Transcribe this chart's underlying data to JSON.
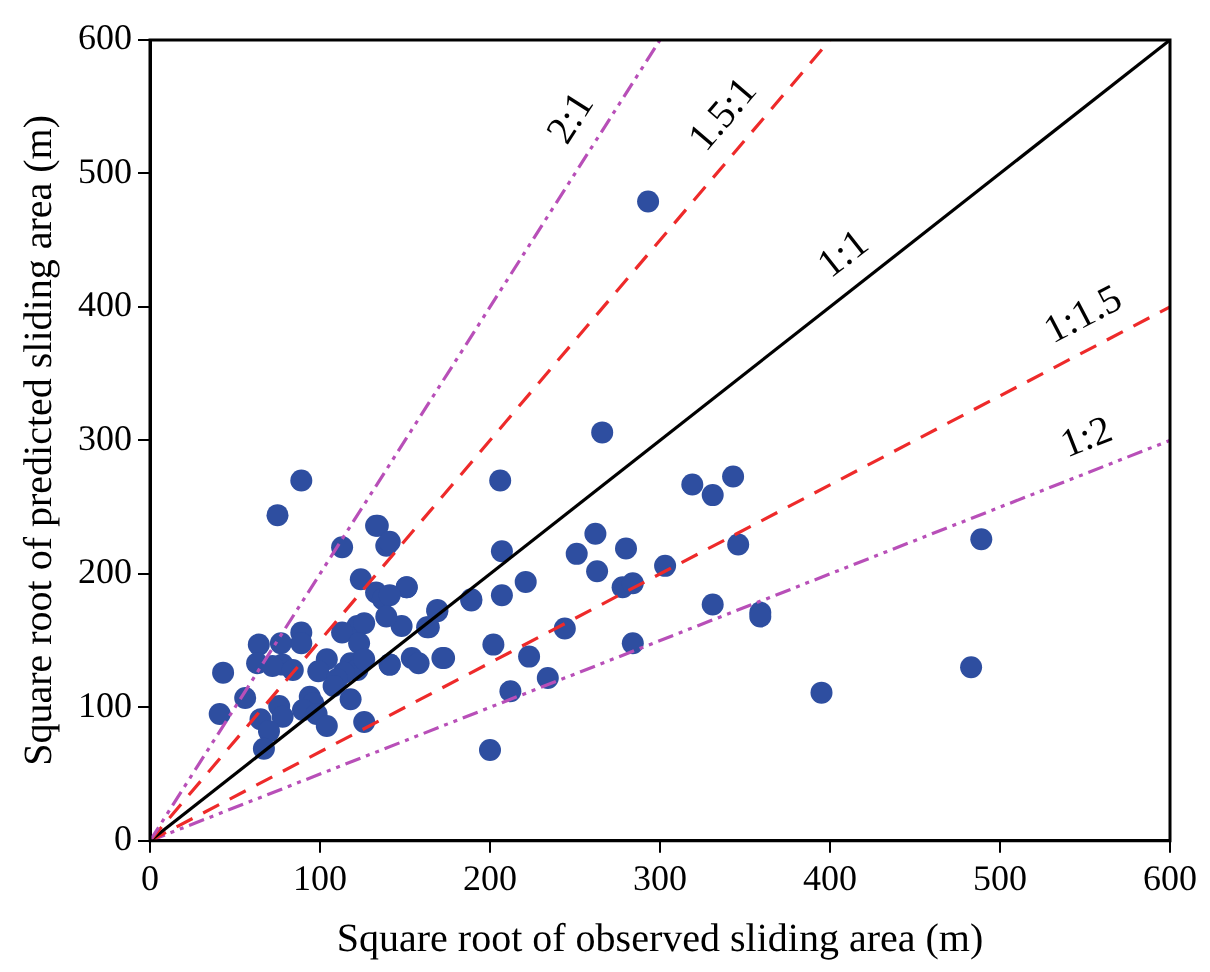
{
  "chart_data": {
    "type": "scatter",
    "xlabel": "Square root of observed sliding area (m)",
    "ylabel": "Square root of predicted sliding area (m)",
    "xlim": [
      0,
      600
    ],
    "ylim": [
      0,
      600
    ],
    "xticks": [
      0,
      100,
      200,
      300,
      400,
      500,
      600
    ],
    "yticks": [
      0,
      100,
      200,
      300,
      400,
      500,
      600
    ],
    "grid": false,
    "legend": false,
    "marker": "circle",
    "series": [
      {
        "color": "#2e4ea0",
        "x": [
          293,
          266,
          206,
          319,
          331,
          343,
          133,
          207,
          251,
          262,
          280,
          263,
          303,
          346,
          221,
          207,
          278,
          284,
          189,
          169,
          164,
          151,
          244,
          331,
          359,
          359,
          489,
          202,
          223,
          284,
          234,
          212,
          395,
          483,
          200,
          173,
          154,
          158,
          141,
          148,
          126,
          118,
          89,
          75,
          134,
          113,
          139,
          141,
          124,
          151,
          133,
          137,
          141,
          139,
          169,
          189,
          163,
          122,
          126,
          113,
          89,
          89,
          77,
          64,
          123,
          104,
          78,
          63,
          72,
          84,
          99,
          43,
          118,
          122,
          126,
          114,
          110,
          108,
          141,
          172,
          94,
          96,
          90,
          98,
          104,
          76,
          78,
          65,
          70,
          56,
          41,
          67
        ],
        "values": [
          479,
          306,
          270,
          267,
          259,
          273,
          236,
          217,
          215,
          230,
          219,
          202,
          206,
          222,
          194,
          184,
          190,
          193,
          180,
          172,
          160,
          190,
          159,
          177,
          171,
          168,
          226,
          147,
          138,
          148,
          122,
          112,
          111,
          130,
          68,
          137,
          137,
          133,
          132,
          161,
          89,
          106,
          270,
          244,
          236,
          220,
          221,
          224,
          196,
          190,
          186,
          181,
          184,
          168,
          173,
          181,
          160,
          161,
          163,
          156,
          156,
          148,
          148,
          147,
          148,
          136,
          132,
          133,
          131,
          128,
          127,
          126,
          133,
          128,
          136,
          126,
          121,
          116,
          132,
          137,
          108,
          103,
          98,
          95,
          86,
          101,
          93,
          91,
          82,
          107,
          95,
          69
        ]
      },
      {
        "type": "line",
        "name": "2:1",
        "color": "#b84fb8",
        "line_style": "dotted",
        "marker": "none",
        "x": [
          0,
          300
        ],
        "values": [
          0,
          600
        ]
      },
      {
        "type": "line",
        "name": "1.5:1",
        "color": "#ee2a2a",
        "line_style": "dashed",
        "marker": "none",
        "x": [
          0,
          400
        ],
        "values": [
          0,
          600
        ]
      },
      {
        "type": "line",
        "name": "1:1",
        "color": "#000000",
        "line_style": "solid",
        "marker": "none",
        "x": [
          0,
          600
        ],
        "values": [
          0,
          600
        ]
      },
      {
        "type": "line",
        "name": "1:1.5",
        "color": "#ee2a2a",
        "line_style": "dashed",
        "marker": "none",
        "x": [
          0,
          600
        ],
        "values": [
          0,
          400
        ]
      },
      {
        "type": "line",
        "name": "1:2",
        "color": "#b84fb8",
        "line_style": "dotted",
        "marker": "none",
        "x": [
          0,
          600
        ],
        "values": [
          0,
          300
        ]
      }
    ]
  }
}
